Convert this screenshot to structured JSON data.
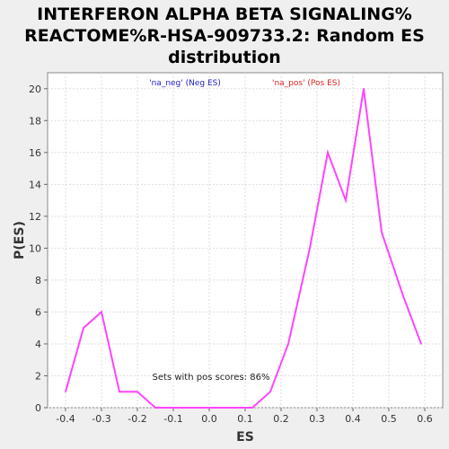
{
  "chart_data": {
    "type": "line",
    "title_lines": [
      "INTERFERON ALPHA BETA SIGNALING%",
      "REACTOME%R-HSA-909733.2: Random ES",
      "distribution"
    ],
    "xlabel": "ES",
    "ylabel": "P(ES)",
    "xlim": [
      -0.45,
      0.65
    ],
    "ylim": [
      0,
      21
    ],
    "xticks": [
      "-0.4",
      "-0.3",
      "-0.2",
      "-0.1",
      "0.0",
      "0.1",
      "0.2",
      "0.3",
      "0.4",
      "0.5",
      "0.6"
    ],
    "yticks": [
      "0",
      "2",
      "4",
      "6",
      "8",
      "10",
      "12",
      "14",
      "16",
      "18",
      "20"
    ],
    "grid": true,
    "legend": [
      {
        "text": "'na_neg' (Neg ES)",
        "color": "#2222cc"
      },
      {
        "text": "'na_pos' (Pos ES)",
        "color": "#dd2222"
      }
    ],
    "annotation": "Sets with pos scores: 86%",
    "series": [
      {
        "color": "#ff44ff",
        "x": [
          -0.4,
          -0.35,
          -0.3,
          -0.25,
          -0.2,
          -0.15,
          -0.1,
          -0.05,
          0.0,
          0.05,
          0.12,
          0.17,
          0.22,
          0.28,
          0.33,
          0.38,
          0.43,
          0.48,
          0.54,
          0.59
        ],
        "y": [
          1,
          5,
          6,
          1,
          1,
          0,
          0,
          0,
          0,
          0,
          0,
          1,
          4,
          10,
          16,
          13,
          20,
          11,
          7,
          4
        ]
      }
    ]
  }
}
